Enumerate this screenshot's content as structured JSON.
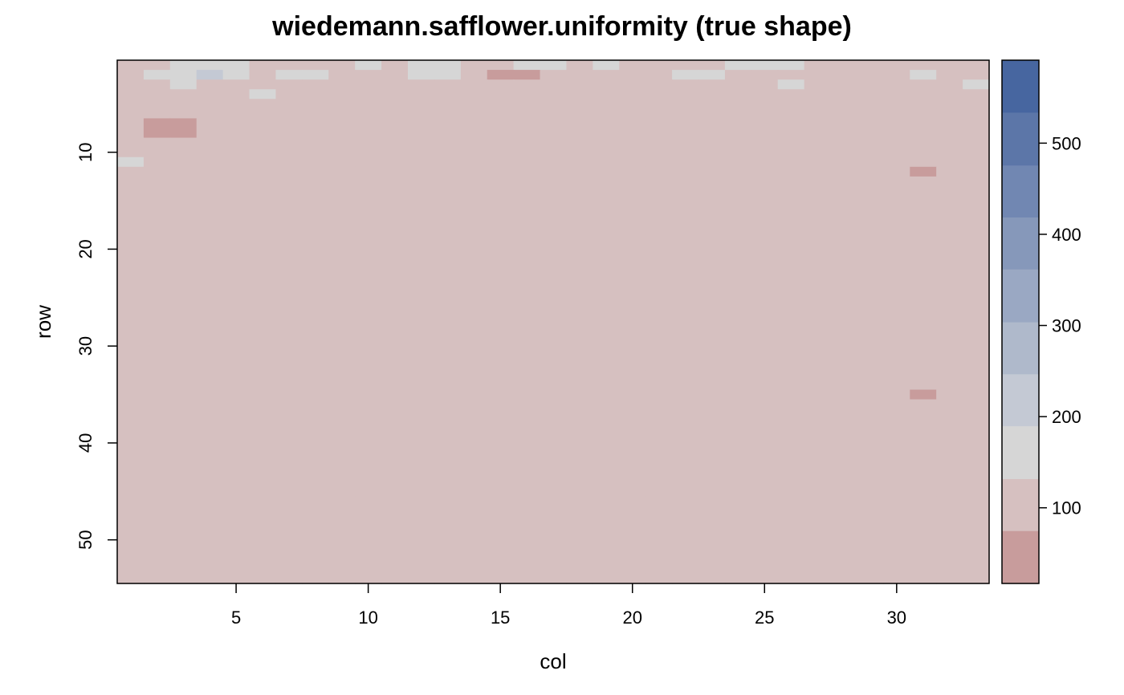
{
  "chart_data": {
    "type": "heatmap",
    "title": "wiedemann.safflower.uniformity (true shape)",
    "xlabel": "col",
    "ylabel": "row",
    "ncols": 33,
    "nrows": 54,
    "xlim": [
      0.5,
      33.5
    ],
    "ylim": [
      54.5,
      0.5
    ],
    "x_ticks": [
      5,
      10,
      15,
      20,
      25,
      30
    ],
    "y_ticks": [
      10,
      20,
      30,
      40,
      50
    ],
    "colorbar": {
      "breaks": [
        17,
        75,
        132,
        190,
        247,
        304,
        362,
        419,
        476,
        534,
        591
      ],
      "colors": [
        "#c89c9c",
        "#d6c0c0",
        "#d6d6d6",
        "#c4c9d4",
        "#afb9cb",
        "#9aa8c3",
        "#8698ba",
        "#7187b2",
        "#5c76a8",
        "#4766a0",
        "#325597"
      ],
      "ticks": [
        100,
        200,
        300,
        400,
        500
      ],
      "range": [
        17,
        591
      ]
    },
    "grid": false,
    "legend": "right colorbar",
    "values": [
      "BBCCCBBBBCBCCBBCCBCBBBBCCCBBBBBBB",
      "BCCDCBCCBBBCCBAABBBBBCCBBBBBBBCBB",
      "BBCBBBBBBBBBBBBBBBBBBBBBBCBBBBBBC",
      "BBBBBCBBBBBBBBBBBBBBBBBBBBBBBBBBB",
      "BBBBBBBBBBBBBBBBBBBBBBBBBBBBBBBBB",
      "BBBBBBBBBBBBBBBBBBBBBBBBBBBBBBBBB",
      "BAABBBBBBBBBBBBBBBBBBBBBBBBBBBBBB",
      "BAABBBBBBBBBBBBBBBBBBBBBBBBBBBBBB",
      "BBBBBBBBBBBBBBBBBBBBBBBBBBBBBBBBB",
      "BBBBBBBBBBBBBBBBBBBBBBBBBBBBBBBBB",
      "CBBBBBBBBBBBBBBBBBBBBBBBBBBBBBBBB",
      "BBBBBBBBBBBBBBBBBBBBBBBBBBBBBBABB",
      "BBBBBBBBBBBBBBBBBBBBBBBBBBBBBBBBB",
      "BBBBBBBBBBBBBBBBBBBBBBBBBBBBBBBBB",
      "BBBBBBBBBBBBBBBBBBBBBBBBBBBBBBBBB",
      "BBBBBBBBBBBBBBBBBBBBBBBBBBBBBBBBB",
      "BBBBBBBBBBBBBBBBBBBBBBBBBBBBBBBBB",
      "BBBBBBBBBBBBBBBBBBBBBBBBBBBBBBBBB",
      "BBBBBBBBBBBBBBBBBBBBBBBBBBBBBBBBB",
      "BBBBBBBBBBBBBBBBBBBBBBBBBBBBBBBBB",
      "BBBBBBBBBBBBBBBBBBBBBBBBBBBBBBBBB",
      "BBBBBBBBBBBBBBBBBBBBBBBBBBBBBBBBB",
      "BBBBBBBBBBBBBBBBBBBBBBBBBBBBBBBBB",
      "BBBBBBBBBBBBBBBBBBBBBBBBBBBBBBBBB",
      "BBBBBBBBBBBBBBBBBBBBBBBBBBBBBBBBB",
      "BBBBBBBBBBBBBBBBBBBBBBBBBBBBBBBBB",
      "BBBBBBBBBBBBBBBBBBBBBBBBBBBBBBBBB",
      "BBBBBBBBBBBBBBBBBBBBBBBBBBBBBBBBB",
      "BBBBBBBBBBBBBBBBBBBBBBBBBBBBBBBBB",
      "BBBBBBBBBBBBBBBBBBBBBBBBBBBBBBBBB",
      "BBBBBBBBBBBBBBBBBBBBBBBBBBBBBBBBB",
      "BBBBBBBBBBBBBBBBBBBBBBBBBBBBBBBBB",
      "BBBBBBBBBBBBBBBBBBBBBBBBBBBBBBBBB",
      "BBBBBBBBBBBBBBBBBBBBBBBBBBBBBBBBB",
      "BBBBBBBBBBBBBBBBBBBBBBBBBBBBBBABB",
      "BBBBBBBBBBBBBBBBBBBBBBBBBBBBBBBBB",
      "BBBBBBBBBBBBBBBBBBBBBBBBBBBBBBBBB",
      "BBBBBBBBBBBBBBBBBBBBBBBBBBBBBBBBB",
      "BBBBBBBBBBBBBBBBBBBBBBBBBBBBBBBBB",
      "BBBBBBBBBBBBBBBBBBBBBBBBBBBBBBBBB",
      "BBBBBBBBBBBBBBBBBBBBBBBBBBBBBBBBB",
      "BBBBBBBBBBBBBBBBBBBBBBBBBBBBBBBBB",
      "BBBBBBBBBBBBBBBBBBBBBBBBBBBBBBBBB",
      "BBBBBBBBBBBBBBBBBBBBBBBBBBBBBBBBB",
      "BBBBBBBBBBBBBBBBBBBBBBBBBBBBBBBBB",
      "BBBBBBBBBBBBBBBBBBBBBBBBBBBBBBBBB",
      "BBBBBBBBBBBBBBBBBBBBBBBBBBBBBBBBB",
      "BBBBBBBBBBBBBBBBBBBBBBBBBBBBBBBBB",
      "BBBBBBBBBBBBBBBBBBBBBBBBBBBBBBBBB",
      "BBBBBBBBBBBBBBBBBBBBBBBBBBBBBBBBB",
      "BBBBBBBBBBBBBBBBBBBBBBBBBBBBBBBBB",
      "BBBBBBBBBBBBBBBBBBBBBBBBBBBBBBBBB",
      "BBBBBBBBBBBBBBBBBBBBBBBBBBBBBBBBB",
      "BBBBBBBBBBBBBBBBBBBBBBBBBBBBBBBBB"
    ],
    "value_legend": "Each character is a colorbar band index: A..K = bands 0..10 (A = 17-75 lowest, K = 534-591 highest)."
  }
}
